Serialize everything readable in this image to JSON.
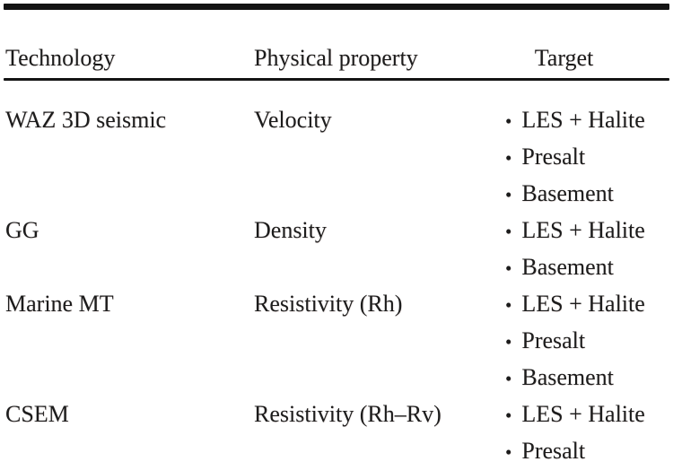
{
  "document": {
    "kind": "paper-table",
    "background_color": "#ffffff",
    "text_color": "#1c1c1c",
    "rule_color": "#141414",
    "bullet_char": "•"
  },
  "table": {
    "headers": [
      "Technology",
      "Physical property",
      "Target"
    ],
    "rows": [
      {
        "technology": "WAZ 3D seismic",
        "physical_property": "Velocity",
        "targets": [
          "LES + Halite",
          "Presalt",
          "Basement"
        ]
      },
      {
        "technology": "GG",
        "physical_property": "Density",
        "targets": [
          "LES + Halite",
          "Basement"
        ]
      },
      {
        "technology": "Marine MT",
        "physical_property": "Resistivity (Rh)",
        "targets": [
          "LES + Halite",
          "Presalt",
          "Basement"
        ]
      },
      {
        "technology": "CSEM",
        "physical_property": "Resistivity (Rh–Rv)",
        "targets": [
          "LES + Halite",
          "Presalt"
        ]
      }
    ]
  }
}
